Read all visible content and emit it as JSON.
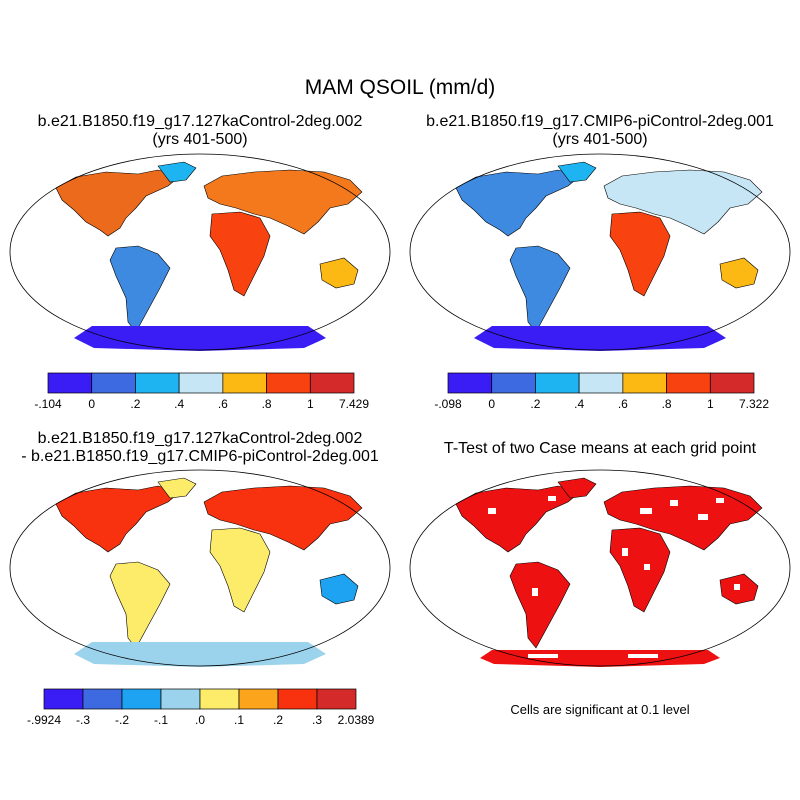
{
  "title": "MAM QSOIL (mm/d)",
  "colors": {
    "land_outline": "#000000",
    "ocean": "#ffffff",
    "sig_red": "#ee1111"
  },
  "panels": [
    {
      "id": "p1",
      "title_line1": "b.e21.B1850.f19_g17.127kaControl-2deg.002",
      "title_line2": "(yrs 401-500)",
      "colorbar": {
        "colors": [
          "#3a1cf5",
          "#3d6ae0",
          "#1eb4f2",
          "#c6e6f6",
          "#fcb914",
          "#f8420f",
          "#d42a2a"
        ],
        "labels": [
          "-.104",
          "0",
          ".2",
          ".4",
          ".6",
          ".8",
          "1",
          "7.429"
        ]
      }
    },
    {
      "id": "p2",
      "title_line1": "b.e21.B1850.f19_g17.CMIP6-piControl-2deg.001",
      "title_line2": "(yrs 401-500)",
      "colorbar": {
        "colors": [
          "#3a1cf5",
          "#3d6ae0",
          "#1eb4f2",
          "#c6e6f6",
          "#fcb914",
          "#f8420f",
          "#d42a2a"
        ],
        "labels": [
          "-.098",
          "0",
          ".2",
          ".4",
          ".6",
          ".8",
          "1",
          "7.322"
        ]
      }
    },
    {
      "id": "p3",
      "title_line1": "b.e21.B1850.f19_g17.127kaControl-2deg.002",
      "title_line2": "- b.e21.B1850.f19_g17.CMIP6-piControl-2deg.001",
      "colorbar": {
        "colors": [
          "#3a1cf5",
          "#3d6ae0",
          "#1ea3f2",
          "#9bd3ec",
          "#fdec6a",
          "#fca41c",
          "#f8310f",
          "#d42a2a"
        ],
        "labels": [
          "-.9924",
          "-.3",
          "-.2",
          "-.1",
          ".0",
          ".1",
          ".2",
          ".3",
          "2.0389"
        ]
      }
    },
    {
      "id": "p4",
      "title_line1": "T-Test of two Case means at each grid point",
      "note": "Cells are significant at 0.1 level"
    }
  ]
}
